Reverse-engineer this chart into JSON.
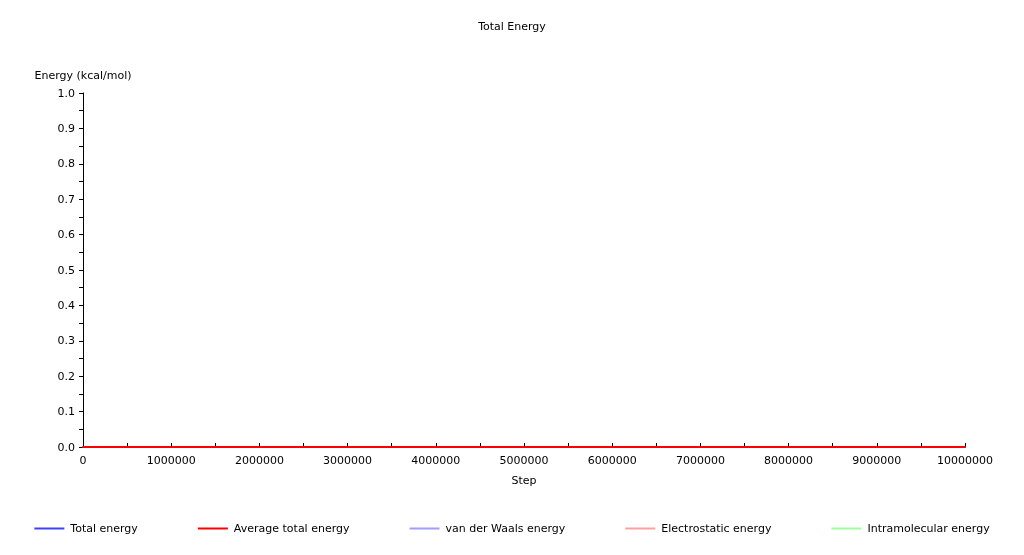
{
  "chart_data": {
    "type": "line",
    "title": "Total Energy",
    "xlabel": "Step",
    "ylabel": "Energy (kcal/mol)",
    "x": [
      0,
      10000000
    ],
    "series": [
      {
        "name": "Total energy",
        "color": "#3f3fff",
        "values": [
          null,
          null
        ]
      },
      {
        "name": "Average total energy",
        "color": "#ff0000",
        "values": [
          0,
          0
        ]
      },
      {
        "name": "van der Waals energy",
        "color": "#9f9fff",
        "values": [
          null,
          null
        ]
      },
      {
        "name": "Electrostatic energy",
        "color": "#ff9f9f",
        "values": [
          null,
          null
        ]
      },
      {
        "name": "Intramolecular energy",
        "color": "#9fff9f",
        "values": [
          null,
          null
        ]
      }
    ],
    "xlim": [
      0,
      10000000
    ],
    "xticks": [
      0,
      {
        "value": 500000,
        "label": null
      },
      1000000,
      {
        "value": 1500000,
        "label": null
      },
      2000000,
      {
        "value": 2500000,
        "label": null
      },
      3000000,
      {
        "value": 3500000,
        "label": null
      },
      4000000,
      {
        "value": 4500000,
        "label": null
      },
      5000000,
      {
        "value": 5500000,
        "label": null
      },
      6000000,
      {
        "value": 6500000,
        "label": null
      },
      7000000,
      {
        "value": 7500000,
        "label": null
      },
      8000000,
      {
        "value": 8500000,
        "label": null
      },
      9000000,
      {
        "value": 9500000,
        "label": null
      },
      10000000
    ],
    "ylim": [
      0,
      1
    ],
    "yticks": [
      {
        "value": 0,
        "label": "0.0"
      },
      {
        "value": 0.05,
        "label": null
      },
      {
        "value": 0.1,
        "label": "0.1"
      },
      {
        "value": 0.15,
        "label": null
      },
      {
        "value": 0.2,
        "label": "0.2"
      },
      {
        "value": 0.25,
        "label": null
      },
      {
        "value": 0.3,
        "label": "0.3"
      },
      {
        "value": 0.35,
        "label": null
      },
      {
        "value": 0.4,
        "label": "0.4"
      },
      {
        "value": 0.45,
        "label": null
      },
      {
        "value": 0.5,
        "label": "0.5"
      },
      {
        "value": 0.55,
        "label": null
      },
      {
        "value": 0.6,
        "label": "0.6"
      },
      {
        "value": 0.65,
        "label": null
      },
      {
        "value": 0.7,
        "label": "0.7"
      },
      {
        "value": 0.75,
        "label": null
      },
      {
        "value": 0.8,
        "label": "0.8"
      },
      {
        "value": 0.85,
        "label": null
      },
      {
        "value": 0.9,
        "label": "0.9"
      },
      {
        "value": 0.95,
        "label": null
      },
      {
        "value": 1,
        "label": "1.0"
      }
    ],
    "grid": false,
    "legend": "bottom",
    "marker": "none",
    "line_style": "solid"
  }
}
